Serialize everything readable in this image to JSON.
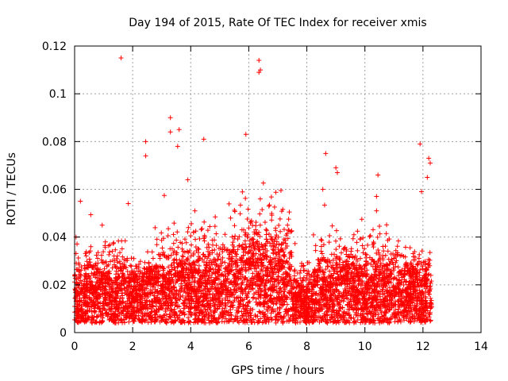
{
  "chart_data": {
    "type": "scatter",
    "title": "Day 194 of 2015, Rate Of TEC Index for receiver xmis",
    "xlabel": "GPS time / hours",
    "ylabel": "ROTI / TECUs",
    "xlim": [
      0,
      14
    ],
    "ylim": [
      0,
      0.12
    ],
    "xticks": [
      "0",
      "2",
      "4",
      "6",
      "8",
      "10",
      "12",
      "14"
    ],
    "yticks": [
      "0",
      "0.02",
      "0.04",
      "0.06",
      "0.08",
      "0.1",
      "0.12"
    ],
    "grid": true,
    "series": [
      {
        "name": "ROTI",
        "marker": "+",
        "color": "#ff0000",
        "density_profile": [
          {
            "start": 0.0,
            "end": 0.35,
            "base": 0.014,
            "spread": 0.01
          },
          {
            "start": 0.35,
            "end": 1.9,
            "base": 0.016,
            "spread": 0.011
          },
          {
            "start": 1.9,
            "end": 2.45,
            "base": 0.015,
            "spread": 0.009
          },
          {
            "start": 2.45,
            "end": 2.75,
            "base": 0.02,
            "spread": 0.006
          },
          {
            "start": 2.75,
            "end": 5.3,
            "base": 0.018,
            "spread": 0.013
          },
          {
            "start": 5.3,
            "end": 7.5,
            "base": 0.022,
            "spread": 0.016
          },
          {
            "start": 7.5,
            "end": 8.2,
            "base": 0.013,
            "spread": 0.008
          },
          {
            "start": 8.2,
            "end": 11.3,
            "base": 0.017,
            "spread": 0.012
          },
          {
            "start": 11.3,
            "end": 12.3,
            "base": 0.016,
            "spread": 0.011
          }
        ],
        "highlighted_points": [
          {
            "x": 1.6,
            "y": 0.115
          },
          {
            "x": 6.35,
            "y": 0.114
          },
          {
            "x": 6.4,
            "y": 0.11
          },
          {
            "x": 6.35,
            "y": 0.109
          },
          {
            "x": 3.3,
            "y": 0.09
          },
          {
            "x": 3.6,
            "y": 0.085
          },
          {
            "x": 3.3,
            "y": 0.084
          },
          {
            "x": 5.9,
            "y": 0.083
          },
          {
            "x": 4.45,
            "y": 0.081
          },
          {
            "x": 2.45,
            "y": 0.08
          },
          {
            "x": 11.9,
            "y": 0.079
          },
          {
            "x": 3.55,
            "y": 0.078
          },
          {
            "x": 8.65,
            "y": 0.075
          },
          {
            "x": 2.45,
            "y": 0.074
          },
          {
            "x": 12.2,
            "y": 0.073
          },
          {
            "x": 12.25,
            "y": 0.071
          },
          {
            "x": 9.0,
            "y": 0.069
          },
          {
            "x": 9.05,
            "y": 0.067
          },
          {
            "x": 10.45,
            "y": 0.066
          },
          {
            "x": 12.15,
            "y": 0.065
          },
          {
            "x": 3.9,
            "y": 0.064
          },
          {
            "x": 8.55,
            "y": 0.06
          },
          {
            "x": 11.95,
            "y": 0.059
          },
          {
            "x": 10.4,
            "y": 0.057
          },
          {
            "x": 0.2,
            "y": 0.055
          },
          {
            "x": 1.85,
            "y": 0.054
          },
          {
            "x": 10.4,
            "y": 0.051
          },
          {
            "x": 0.95,
            "y": 0.045
          },
          {
            "x": 0.05,
            "y": 0.04
          }
        ]
      }
    ]
  }
}
